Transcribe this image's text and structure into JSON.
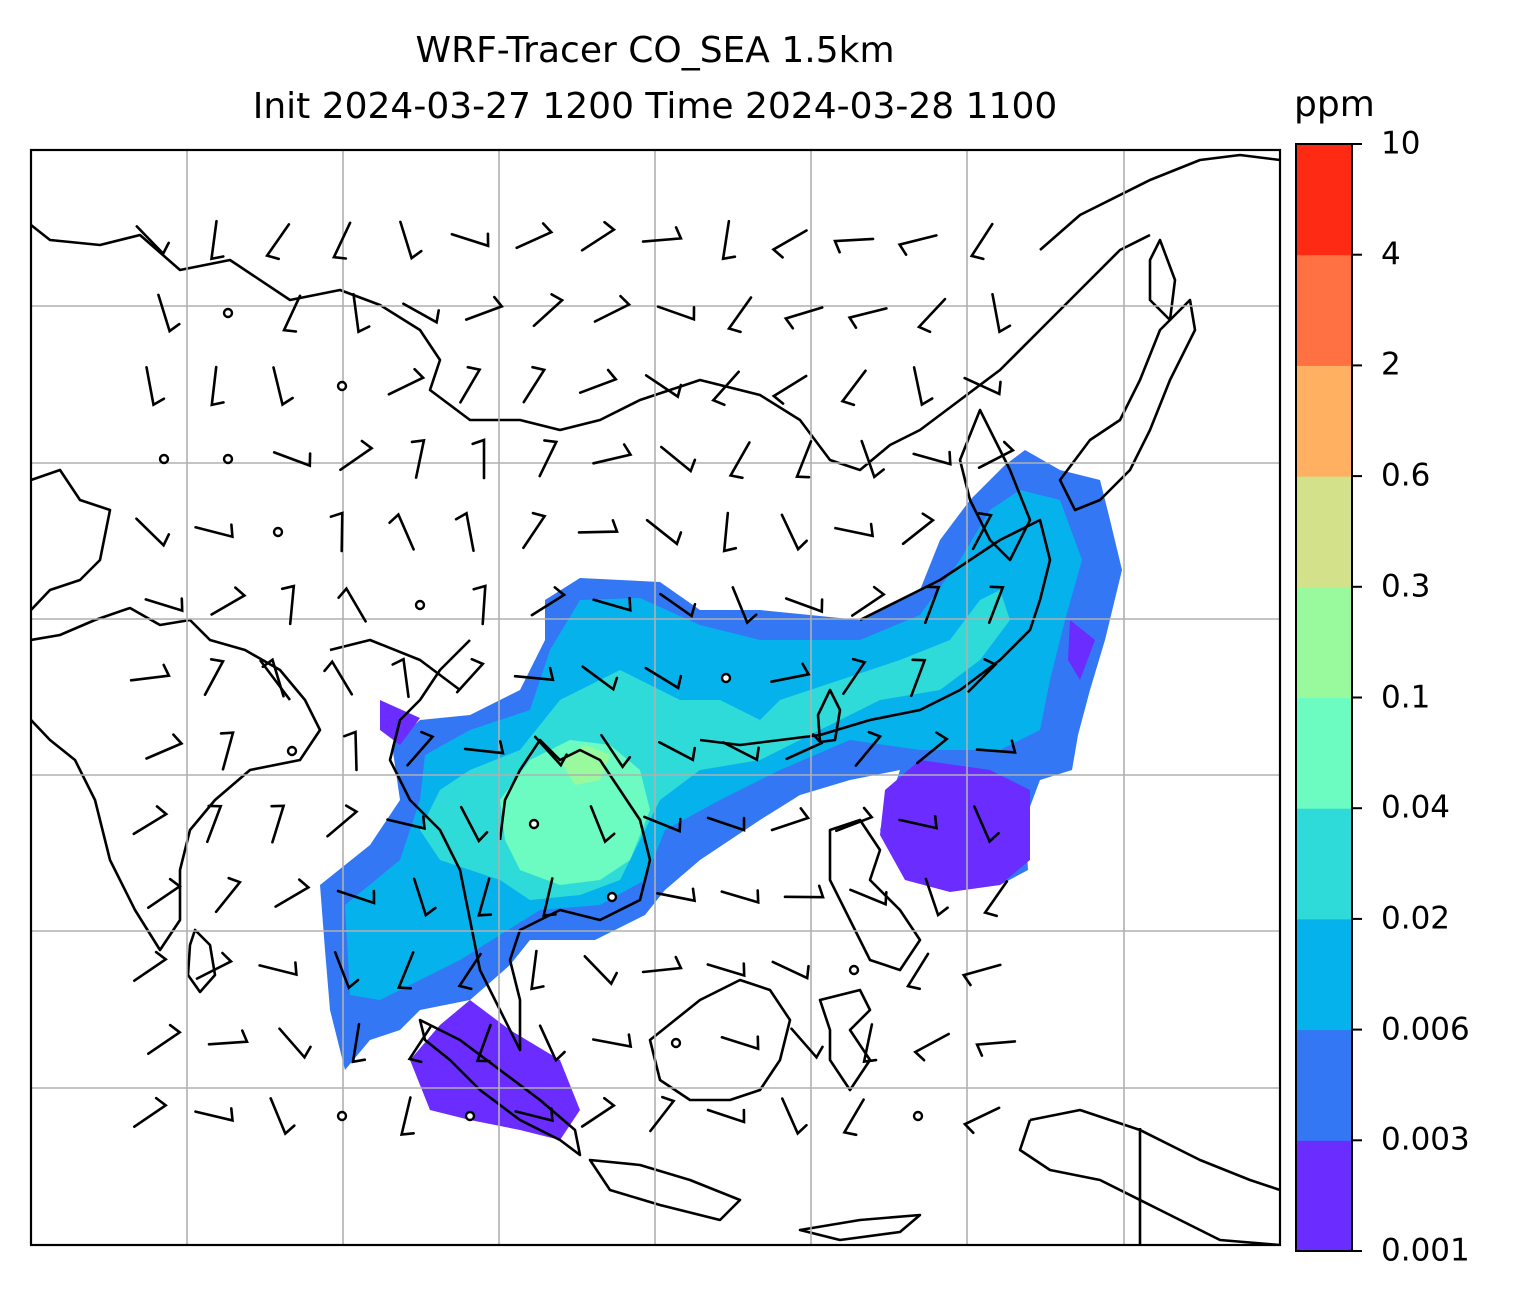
{
  "title": "WRF-Tracer CO_SEA 1.5km",
  "subtitle": "Init 2024-03-27 1200 Time 2024-03-28 1100",
  "colorbar": {
    "unit": "ppm",
    "levels": [
      "0.001",
      "0.003",
      "0.006",
      "0.02",
      "0.04",
      "0.1",
      "0.3",
      "0.6",
      "2",
      "4",
      "10"
    ],
    "colors": [
      "#6a2cff",
      "#3377f5",
      "#06b2ec",
      "#2fdbd9",
      "#6cfcc1",
      "#98fa9c",
      "#d2e18a",
      "#ffb061",
      "#ff7043",
      "#ff2a14"
    ]
  },
  "map": {
    "gridlines": true,
    "coastline_color": "#000000",
    "grid_color": "#b0b0b0"
  }
}
